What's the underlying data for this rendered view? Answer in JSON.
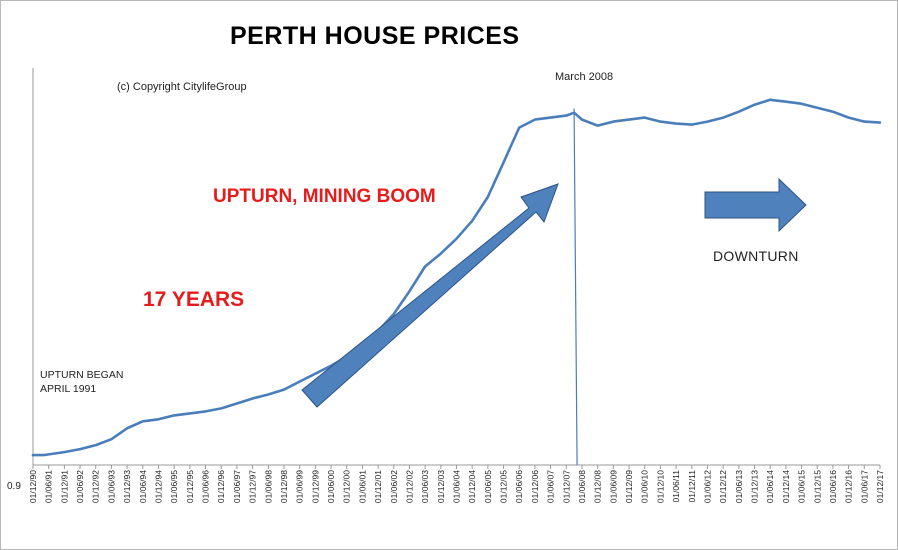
{
  "colors": {
    "line": "#4a7ebb",
    "arrow_fill": "#4f81bd",
    "arrow_stroke": "#2c5486",
    "highlight_text": "#e41c1c"
  },
  "chart_data": {
    "type": "line",
    "title": "PERTH HOUSE PRICES",
    "xlabel": "",
    "ylabel": "",
    "y_axis_min_label": "0.9",
    "grid": false,
    "legend": "none",
    "tick_labels": [
      "01/12/90",
      "01/06/91",
      "01/12/91",
      "01/06/92",
      "01/12/92",
      "01/06/93",
      "01/12/93",
      "01/06/94",
      "01/12/94",
      "01/06/95",
      "01/12/95",
      "01/06/96",
      "01/12/96",
      "01/06/97",
      "01/12/97",
      "01/06/98",
      "01/12/98",
      "01/06/99",
      "01/12/99",
      "01/06/00",
      "01/12/00",
      "01/06/01",
      "01/12/01",
      "01/06/02",
      "01/12/02",
      "01/06/03",
      "01/12/03",
      "01/06/04",
      "01/12/04",
      "01/06/05",
      "01/12/05",
      "01/06/06",
      "01/12/06",
      "01/06/07",
      "01/12/07",
      "01/06/08",
      "01/12/08",
      "01/06/09",
      "01/12/09",
      "01/06/10",
      "01/12/10",
      "01/06/11",
      "01/12/11",
      "01/06/12",
      "01/12/12",
      "01/06/13",
      "01/12/13",
      "01/06/14",
      "01/12/14",
      "01/06/15",
      "01/12/15",
      "01/06/16",
      "01/12/16",
      "01/06/17",
      "01/12/17"
    ],
    "x": [
      "1990-12",
      "1991-04",
      "1991-12",
      "1992-06",
      "1992-12",
      "1993-06",
      "1993-12",
      "1994-06",
      "1994-12",
      "1995-06",
      "1995-12",
      "1996-06",
      "1996-12",
      "1997-06",
      "1997-12",
      "1998-06",
      "1998-12",
      "1999-06",
      "1999-12",
      "2000-06",
      "2000-12",
      "2001-06",
      "2001-12",
      "2002-06",
      "2002-12",
      "2003-06",
      "2003-12",
      "2004-06",
      "2004-12",
      "2005-06",
      "2005-12",
      "2006-06",
      "2006-12",
      "2007-06",
      "2007-12",
      "2008-03",
      "2008-06",
      "2008-12",
      "2009-06",
      "2009-12",
      "2010-06",
      "2010-12",
      "2011-06",
      "2011-12",
      "2012-06",
      "2012-12",
      "2013-06",
      "2013-12",
      "2014-06",
      "2014-12",
      "2015-06",
      "2015-12",
      "2016-06",
      "2016-12",
      "2017-06",
      "2017-12"
    ],
    "values": [
      1.0,
      1.0,
      1.03,
      1.06,
      1.1,
      1.16,
      1.27,
      1.34,
      1.36,
      1.4,
      1.42,
      1.44,
      1.47,
      1.52,
      1.57,
      1.61,
      1.66,
      1.74,
      1.82,
      1.9,
      1.99,
      2.1,
      2.25,
      2.42,
      2.65,
      2.9,
      3.03,
      3.18,
      3.36,
      3.6,
      3.95,
      4.3,
      4.38,
      4.4,
      4.42,
      4.45,
      4.38,
      4.32,
      4.36,
      4.38,
      4.4,
      4.36,
      4.34,
      4.33,
      4.36,
      4.4,
      4.46,
      4.53,
      4.58,
      4.56,
      4.54,
      4.5,
      4.46,
      4.4,
      4.36,
      4.35
    ],
    "ylim": [
      0.9,
      4.9
    ],
    "annotations": {
      "copyright": "(c) Copyright CitylifeGroup",
      "peak_marker": "March 2008",
      "boom": "UPTURN, MINING BOOM",
      "years": "17 YEARS",
      "upturn_began": "UPTURN BEGAN APRIL 1991",
      "downturn": "DOWNTURN"
    }
  }
}
